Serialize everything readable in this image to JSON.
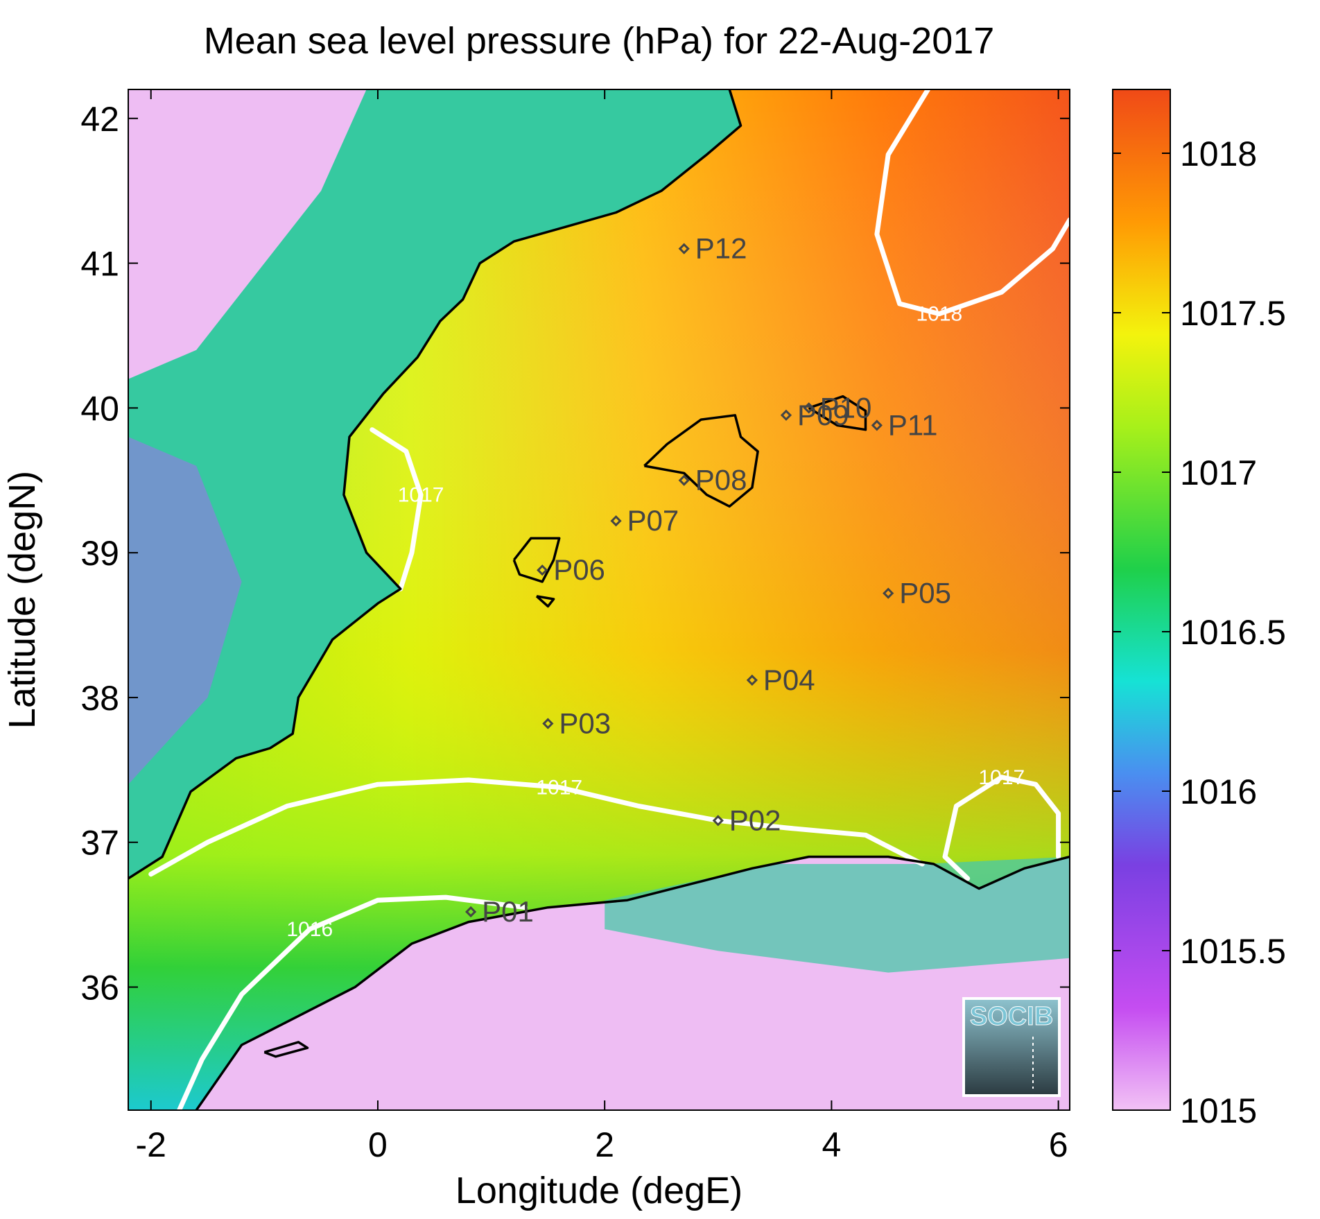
{
  "chart_data": {
    "type": "heatmap",
    "title": "Mean sea level pressure (hPa) for 22-Aug-2017",
    "xlabel": "Longitude (degE)",
    "ylabel": "Latitude (degN)",
    "xlim": [
      -2.2,
      6.1
    ],
    "ylim": [
      35.15,
      42.2
    ],
    "xticks": [
      -2,
      0,
      2,
      4,
      6
    ],
    "yticks": [
      36,
      37,
      38,
      39,
      40,
      41,
      42
    ],
    "colorbar": {
      "ticks": [
        1015,
        1015.5,
        1016,
        1016.5,
        1017,
        1017.5,
        1018
      ],
      "min": 1015,
      "max": 1018.2
    },
    "colors": {
      "coast": "#000000",
      "contour": "#ffffff",
      "station": "#444444",
      "station_label": "#444444"
    },
    "stations": [
      {
        "name": "P01",
        "lon": 0.82,
        "lat": 36.52
      },
      {
        "name": "P02",
        "lon": 3.0,
        "lat": 37.15
      },
      {
        "name": "P03",
        "lon": 1.5,
        "lat": 37.82
      },
      {
        "name": "P04",
        "lon": 3.3,
        "lat": 38.12
      },
      {
        "name": "P05",
        "lon": 4.5,
        "lat": 38.72
      },
      {
        "name": "P06",
        "lon": 1.45,
        "lat": 38.88
      },
      {
        "name": "P07",
        "lon": 2.1,
        "lat": 39.22
      },
      {
        "name": "P08",
        "lon": 2.7,
        "lat": 39.5
      },
      {
        "name": "P09",
        "lon": 3.6,
        "lat": 39.95
      },
      {
        "name": "P10",
        "lon": 3.8,
        "lat": 40.0
      },
      {
        "name": "P11",
        "lon": 4.4,
        "lat": 39.88
      },
      {
        "name": "P12",
        "lon": 2.7,
        "lat": 41.1
      }
    ],
    "contours": [
      {
        "label": "1016",
        "level": 1016,
        "points": [
          [
            -1.75,
            35.15
          ],
          [
            -1.55,
            35.5
          ],
          [
            -1.2,
            35.95
          ],
          [
            -0.6,
            36.4
          ],
          [
            0.0,
            36.6
          ],
          [
            0.6,
            36.62
          ],
          [
            1.3,
            36.55
          ]
        ]
      },
      {
        "label": "1017",
        "level": 1017,
        "points": [
          [
            -2.0,
            36.78
          ],
          [
            -1.5,
            37.0
          ],
          [
            -0.8,
            37.25
          ],
          [
            0.0,
            37.4
          ],
          [
            0.8,
            37.43
          ],
          [
            1.6,
            37.38
          ],
          [
            2.3,
            37.25
          ],
          [
            3.0,
            37.15
          ],
          [
            3.6,
            37.1
          ],
          [
            4.3,
            37.05
          ],
          [
            4.8,
            36.85
          ]
        ]
      },
      {
        "label": "1017",
        "level": 1017,
        "points": [
          [
            -0.05,
            39.85
          ],
          [
            0.25,
            39.7
          ],
          [
            0.38,
            39.4
          ],
          [
            0.3,
            39.0
          ],
          [
            0.2,
            38.75
          ]
        ]
      },
      {
        "label": "1017",
        "level": 1017,
        "points": [
          [
            5.2,
            36.75
          ],
          [
            5.0,
            36.9
          ],
          [
            5.1,
            37.25
          ],
          [
            5.5,
            37.45
          ],
          [
            5.8,
            37.4
          ],
          [
            6.0,
            37.2
          ],
          [
            6.0,
            36.9
          ]
        ]
      },
      {
        "label": "1018",
        "level": 1018,
        "points": [
          [
            4.85,
            42.2
          ],
          [
            4.5,
            41.75
          ],
          [
            4.4,
            41.2
          ],
          [
            4.6,
            40.72
          ],
          [
            4.95,
            40.65
          ],
          [
            5.5,
            40.8
          ],
          [
            5.95,
            41.1
          ],
          [
            6.1,
            41.3
          ]
        ]
      }
    ],
    "coastlines": [
      {
        "name": "iberia",
        "points": [
          [
            -2.2,
            36.75
          ],
          [
            -1.9,
            36.9
          ],
          [
            -1.65,
            37.35
          ],
          [
            -1.25,
            37.58
          ],
          [
            -0.95,
            37.65
          ],
          [
            -0.75,
            37.75
          ],
          [
            -0.7,
            38.0
          ],
          [
            -0.55,
            38.2
          ],
          [
            -0.4,
            38.4
          ],
          [
            0.0,
            38.65
          ],
          [
            0.2,
            38.75
          ],
          [
            -0.1,
            39.0
          ],
          [
            -0.3,
            39.4
          ],
          [
            -0.25,
            39.8
          ],
          [
            0.05,
            40.1
          ],
          [
            0.35,
            40.35
          ],
          [
            0.55,
            40.6
          ],
          [
            0.75,
            40.75
          ],
          [
            0.9,
            41.0
          ],
          [
            1.2,
            41.15
          ],
          [
            1.65,
            41.25
          ],
          [
            2.1,
            41.35
          ],
          [
            2.5,
            41.5
          ],
          [
            2.9,
            41.75
          ],
          [
            3.2,
            41.95
          ],
          [
            3.1,
            42.2
          ]
        ]
      },
      {
        "name": "mallorca",
        "points": [
          [
            2.35,
            39.6
          ],
          [
            2.55,
            39.75
          ],
          [
            2.85,
            39.92
          ],
          [
            3.15,
            39.95
          ],
          [
            3.2,
            39.8
          ],
          [
            3.35,
            39.7
          ],
          [
            3.3,
            39.45
          ],
          [
            3.1,
            39.32
          ],
          [
            2.9,
            39.4
          ],
          [
            2.7,
            39.55
          ],
          [
            2.35,
            39.6
          ]
        ]
      },
      {
        "name": "menorca",
        "points": [
          [
            3.8,
            40.0
          ],
          [
            4.1,
            40.08
          ],
          [
            4.3,
            39.98
          ],
          [
            4.3,
            39.85
          ],
          [
            4.05,
            39.88
          ],
          [
            3.8,
            40.0
          ]
        ]
      },
      {
        "name": "ibiza",
        "points": [
          [
            1.2,
            38.95
          ],
          [
            1.35,
            39.1
          ],
          [
            1.6,
            39.1
          ],
          [
            1.55,
            38.95
          ],
          [
            1.45,
            38.8
          ],
          [
            1.25,
            38.85
          ],
          [
            1.2,
            38.95
          ]
        ]
      },
      {
        "name": "formentera",
        "points": [
          [
            1.4,
            38.7
          ],
          [
            1.55,
            38.68
          ],
          [
            1.5,
            38.63
          ],
          [
            1.4,
            38.7
          ]
        ]
      },
      {
        "name": "n-africa",
        "points": [
          [
            -1.6,
            35.15
          ],
          [
            -1.2,
            35.6
          ],
          [
            -0.7,
            35.8
          ],
          [
            -0.2,
            36.0
          ],
          [
            0.3,
            36.3
          ],
          [
            0.8,
            36.45
          ],
          [
            1.5,
            36.55
          ],
          [
            2.2,
            36.6
          ],
          [
            2.8,
            36.72
          ],
          [
            3.3,
            36.82
          ],
          [
            3.8,
            36.9
          ],
          [
            4.5,
            36.9
          ],
          [
            4.9,
            36.85
          ],
          [
            5.3,
            36.68
          ],
          [
            5.7,
            36.82
          ],
          [
            6.1,
            36.9
          ]
        ]
      },
      {
        "name": "alboran",
        "points": [
          [
            -1.0,
            35.55
          ],
          [
            -0.7,
            35.62
          ],
          [
            -0.62,
            35.58
          ],
          [
            -0.9,
            35.52
          ],
          [
            -1.0,
            35.55
          ]
        ]
      }
    ]
  },
  "logo": {
    "text": "SOCIB"
  }
}
